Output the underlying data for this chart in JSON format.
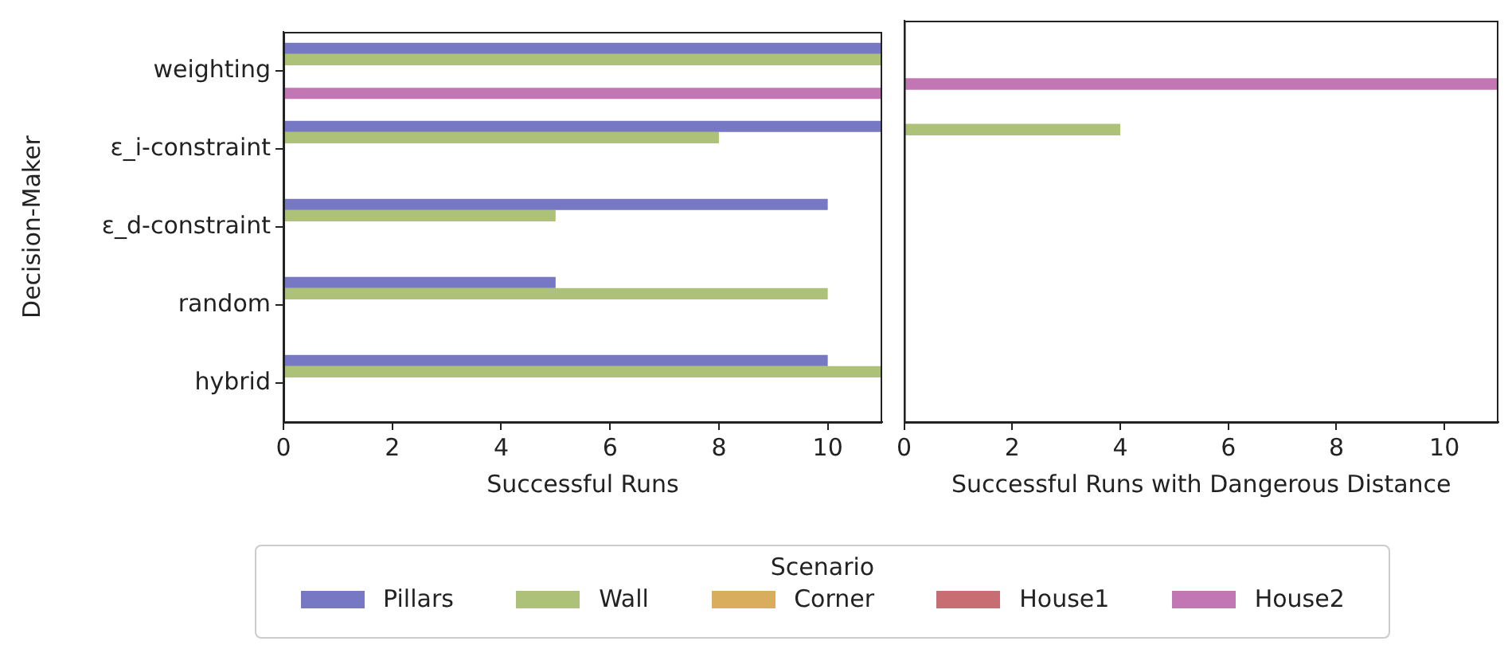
{
  "chart_data": [
    {
      "type": "bar",
      "orientation": "horizontal",
      "ylabel": "Decision-Maker",
      "xlabel": "Successful Runs",
      "legend_title": "Scenario",
      "legend": "bottom",
      "grid": false,
      "categories": [
        "weighting",
        "ε_i-constraint",
        "ε_d-constraint",
        "random",
        "hybrid"
      ],
      "xlim": [
        0,
        11
      ],
      "xticks": [
        0,
        2,
        4,
        6,
        8,
        10
      ],
      "series": [
        {
          "name": "Pillars",
          "color": "#7778c4",
          "values": [
            11,
            11,
            10,
            5,
            10
          ]
        },
        {
          "name": "Wall",
          "color": "#adc178",
          "values": [
            11,
            8,
            5,
            10,
            11
          ]
        },
        {
          "name": "Corner",
          "color": "#d8ad5e",
          "values": [
            0,
            0,
            0,
            0,
            0
          ]
        },
        {
          "name": "House1",
          "color": "#c86e72",
          "values": [
            0,
            0,
            0,
            0,
            0
          ]
        },
        {
          "name": "House2",
          "color": "#c277b4",
          "values": [
            11,
            0,
            0,
            0,
            0
          ]
        }
      ]
    },
    {
      "type": "bar",
      "orientation": "horizontal",
      "xlabel": "Successful Runs with Dangerous Distance",
      "tick_labels": "x",
      "grid": false,
      "categories": [
        null,
        null,
        null,
        null,
        null
      ],
      "xlim": [
        0,
        11
      ],
      "xticks": [
        0,
        2,
        4,
        6,
        8,
        10
      ],
      "series": [
        {
          "color": "#7778c4",
          "values": [
            0,
            0,
            0,
            0,
            0
          ]
        },
        {
          "color": "#adc178",
          "values": [
            0,
            4,
            0,
            0,
            0
          ]
        },
        {
          "color": "#d8ad5e",
          "values": [
            0,
            0,
            0,
            0,
            0
          ]
        },
        {
          "color": "#c86e72",
          "values": [
            0,
            0,
            0,
            0,
            0
          ]
        },
        {
          "color": "#c277b4",
          "values": [
            11,
            0,
            0,
            0,
            0
          ]
        }
      ]
    }
  ]
}
